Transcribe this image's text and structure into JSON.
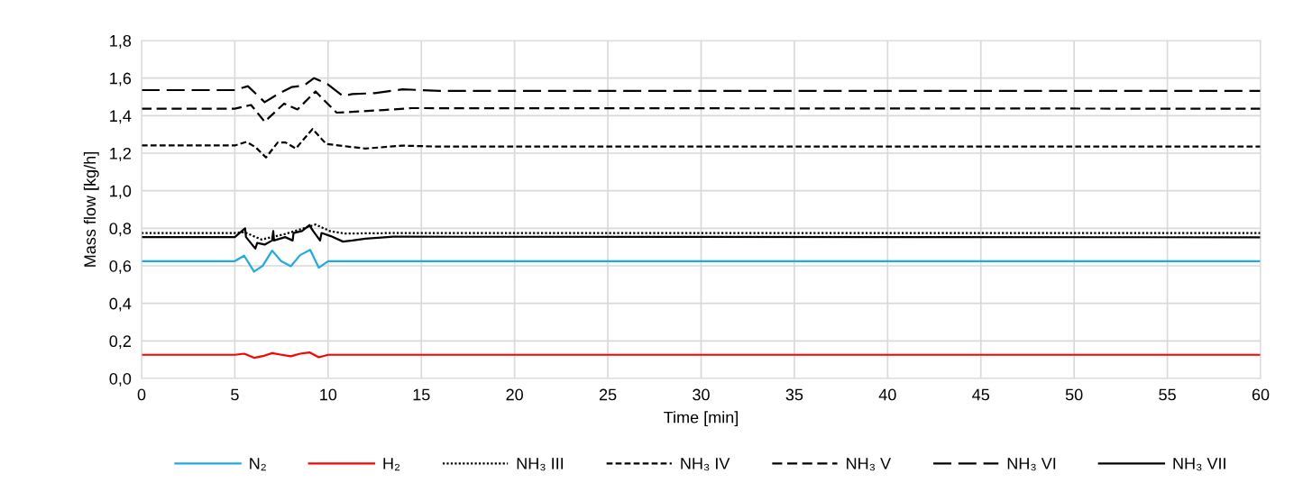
{
  "chart_data": {
    "type": "line",
    "xlabel": "Time [min]",
    "ylabel": "Mass flow [kg/h]",
    "xlim": [
      0,
      60
    ],
    "xticks": [
      0,
      5,
      10,
      15,
      20,
      25,
      30,
      35,
      40,
      45,
      50,
      55,
      60
    ],
    "ylim": [
      0,
      1.8
    ],
    "yticks": [
      {
        "value": 0,
        "label": "0,0"
      },
      {
        "value": 0.2,
        "label": "0,2"
      },
      {
        "value": 0.4,
        "label": "0,4"
      },
      {
        "value": 0.6,
        "label": "0,6"
      },
      {
        "value": 0.8,
        "label": "0,8"
      },
      {
        "value": 1.0,
        "label": "1,0"
      },
      {
        "value": 1.2,
        "label": "1,2"
      },
      {
        "value": 1.4,
        "label": "1,4"
      },
      {
        "value": 1.6,
        "label": "1,6"
      },
      {
        "value": 1.8,
        "label": "1,8"
      }
    ],
    "grid": true,
    "legend": "bottom",
    "marker": "none",
    "series": [
      {
        "name": "N₂",
        "color": "#1eaae6",
        "line_style": "solid",
        "x": [
          0,
          5,
          5.5,
          6.03,
          6.5,
          7.0,
          7.48,
          8.0,
          8.5,
          9.04,
          9.5,
          10,
          60
        ],
        "values": [
          0.625,
          0.625,
          0.654,
          0.569,
          0.601,
          0.681,
          0.625,
          0.598,
          0.657,
          0.685,
          0.59,
          0.625,
          0.625
        ]
      },
      {
        "name": "H₂",
        "color": "#ff0000",
        "line_style": "solid",
        "x": [
          0,
          5,
          5.5,
          6.03,
          6.5,
          7.0,
          7.5,
          8.0,
          8.5,
          9.0,
          9.5,
          10,
          60
        ],
        "values": [
          0.126,
          0.126,
          0.132,
          0.11,
          0.119,
          0.135,
          0.126,
          0.118,
          0.132,
          0.139,
          0.113,
          0.126,
          0.126
        ]
      },
      {
        "name": "NH₃ III",
        "color": "#000000",
        "line_style": "dotted",
        "x": [
          0,
          5,
          5.5,
          6.43,
          7.72,
          9.33,
          10.1,
          10.9,
          14,
          60
        ],
        "values": [
          0.775,
          0.775,
          0.78,
          0.74,
          0.77,
          0.82,
          0.785,
          0.772,
          0.775,
          0.775
        ]
      },
      {
        "name": "NH₃ IV",
        "color": "#000000",
        "line_style": "dashed",
        "x": [
          0,
          5,
          5.62,
          6.1,
          6.67,
          7.3,
          7.72,
          8.27,
          9.17,
          9.9,
          11.27,
          12,
          14,
          16,
          60
        ],
        "values": [
          1.241,
          1.241,
          1.26,
          1.233,
          1.177,
          1.257,
          1.257,
          1.225,
          1.329,
          1.249,
          1.233,
          1.225,
          1.24,
          1.235,
          1.235
        ]
      },
      {
        "name": "NH₃ V",
        "color": "#000000",
        "line_style": "dashed",
        "x": [
          0,
          5,
          5.87,
          6.6,
          7.64,
          8.36,
          9.33,
          9.97,
          10.46,
          11.27,
          13,
          14.5,
          60
        ],
        "values": [
          1.437,
          1.437,
          1.457,
          1.368,
          1.464,
          1.433,
          1.529,
          1.464,
          1.416,
          1.42,
          1.43,
          1.44,
          1.437
        ]
      },
      {
        "name": "NH₃ VI",
        "color": "#000000",
        "line_style": "dashed",
        "x": [
          0,
          5,
          5.7,
          6.6,
          7.4,
          8.04,
          8.7,
          9.25,
          9.97,
          10.78,
          11.3,
          12.5,
          14,
          16,
          60
        ],
        "values": [
          1.536,
          1.536,
          1.557,
          1.472,
          1.52,
          1.552,
          1.56,
          1.6,
          1.568,
          1.505,
          1.515,
          1.52,
          1.54,
          1.532,
          1.532
        ]
      },
      {
        "name": "NH₃ VII",
        "color": "#000000",
        "line_style": "solid",
        "x": [
          0,
          5,
          5.55,
          5.6,
          6.1,
          6.2,
          6.6,
          7.0,
          7.06,
          7.1,
          7.7,
          8.1,
          8.15,
          8.6,
          9.0,
          9.2,
          9.57,
          9.65,
          10.15,
          10.8,
          11.3,
          12,
          13.5,
          60
        ],
        "values": [
          0.753,
          0.753,
          0.8,
          0.753,
          0.692,
          0.722,
          0.713,
          0.735,
          0.785,
          0.735,
          0.753,
          0.735,
          0.775,
          0.785,
          0.817,
          0.785,
          0.735,
          0.775,
          0.758,
          0.729,
          0.735,
          0.745,
          0.755,
          0.752
        ]
      }
    ]
  }
}
